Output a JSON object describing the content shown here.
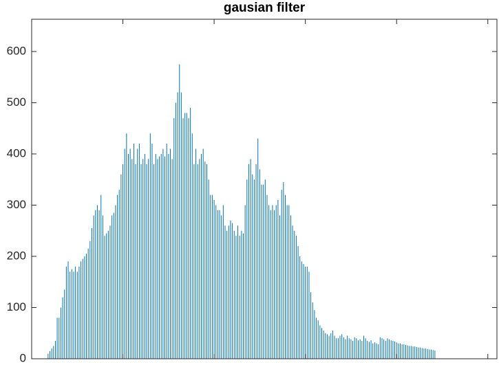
{
  "chart_data": {
    "type": "stem",
    "title": "gausian filter",
    "x": [
      0,
      1,
      2,
      3,
      4,
      5,
      6,
      7,
      8,
      9,
      10,
      11,
      12,
      13,
      14,
      15,
      16,
      17,
      18,
      19,
      20,
      21,
      22,
      23,
      24,
      25,
      26,
      27,
      28,
      29,
      30,
      31,
      32,
      33,
      34,
      35,
      36,
      37,
      38,
      39,
      40,
      41,
      42,
      43,
      44,
      45,
      46,
      47,
      48,
      49,
      50,
      51,
      52,
      53,
      54,
      55,
      56,
      57,
      58,
      59,
      60,
      61,
      62,
      63,
      64,
      65,
      66,
      67,
      68,
      69,
      70,
      71,
      72,
      73,
      74,
      75,
      76,
      77,
      78,
      79,
      80,
      81,
      82,
      83,
      84,
      85,
      86,
      87,
      88,
      89,
      90,
      91,
      92,
      93,
      94,
      95,
      96,
      97,
      98,
      99,
      100,
      101,
      102,
      103,
      104,
      105,
      106,
      107,
      108,
      109,
      110,
      111,
      112,
      113,
      114,
      115,
      116,
      117,
      118,
      119,
      120,
      121,
      122,
      123,
      124,
      125,
      126,
      127,
      128,
      129,
      130,
      131,
      132,
      133,
      134,
      135,
      136,
      137,
      138,
      139,
      140,
      141,
      142,
      143,
      144,
      145,
      146,
      147,
      148,
      149,
      150,
      151,
      152,
      153,
      154,
      155,
      156,
      157,
      158,
      159,
      160,
      161,
      162,
      163,
      164,
      165,
      166,
      167,
      168,
      169,
      170,
      171,
      172,
      173,
      174,
      175,
      176,
      177,
      178,
      179,
      180,
      181,
      182,
      183,
      184,
      185,
      186,
      187,
      188,
      189,
      190,
      191,
      192,
      193,
      194,
      195,
      196,
      197,
      198,
      199,
      200,
      201,
      202,
      203,
      204,
      205,
      206,
      207,
      208,
      209,
      210,
      211,
      212,
      213,
      214,
      215,
      216,
      217,
      218,
      219,
      220,
      221,
      222,
      223,
      224,
      225,
      226,
      227,
      228,
      229,
      230,
      231,
      232,
      233,
      234,
      235,
      236,
      237,
      238,
      239,
      240,
      241,
      242,
      243,
      244,
      245,
      246,
      247,
      248,
      249,
      250,
      251,
      252,
      253,
      254,
      255
    ],
    "values": [
      0,
      0,
      0,
      0,
      0,
      0,
      0,
      0,
      0,
      10,
      15,
      20,
      25,
      35,
      80,
      80,
      100,
      120,
      135,
      180,
      190,
      170,
      175,
      170,
      180,
      170,
      180,
      190,
      195,
      200,
      205,
      215,
      230,
      255,
      280,
      290,
      300,
      290,
      320,
      280,
      240,
      245,
      250,
      260,
      280,
      285,
      300,
      320,
      330,
      360,
      380,
      410,
      440,
      400,
      410,
      390,
      420,
      380,
      410,
      420,
      380,
      390,
      400,
      380,
      390,
      440,
      420,
      380,
      400,
      390,
      395,
      400,
      410,
      395,
      420,
      400,
      410,
      390,
      470,
      500,
      520,
      575,
      520,
      470,
      480,
      480,
      470,
      490,
      440,
      380,
      410,
      380,
      390,
      400,
      410,
      385,
      380,
      350,
      320,
      320,
      310,
      300,
      290,
      290,
      280,
      300,
      260,
      250,
      260,
      270,
      265,
      250,
      240,
      260,
      240,
      250,
      245,
      300,
      350,
      380,
      390,
      360,
      350,
      380,
      430,
      370,
      340,
      340,
      350,
      320,
      300,
      290,
      300,
      290,
      300,
      310,
      280,
      330,
      345,
      320,
      300,
      300,
      280,
      260,
      250,
      240,
      220,
      200,
      190,
      185,
      180,
      180,
      170,
      130,
      110,
      95,
      80,
      75,
      65,
      60,
      55,
      50,
      48,
      45,
      50,
      55,
      45,
      40,
      40,
      45,
      48,
      42,
      38,
      45,
      40,
      38,
      35,
      42,
      40,
      36,
      38,
      35,
      45,
      40,
      35,
      33,
      36,
      30,
      32,
      30,
      28,
      42,
      40,
      38,
      35,
      40,
      38,
      36,
      35,
      34,
      32,
      30,
      30,
      28,
      28,
      27,
      26,
      25,
      25,
      24,
      24,
      23,
      22,
      22,
      21,
      20,
      20,
      19,
      18,
      18,
      17,
      16,
      0,
      0,
      0,
      0,
      0,
      0,
      0,
      0,
      0,
      0,
      0,
      0,
      0,
      0,
      0,
      0,
      0,
      0,
      0,
      0,
      0,
      0,
      0,
      0,
      0,
      0,
      0,
      0,
      0,
      0,
      0,
      0,
      0,
      0
    ],
    "color": "#0072bd",
    "xlim": [
      0,
      255
    ],
    "xticks": [
      0,
      50,
      100,
      150,
      200,
      250
    ],
    "ylim": [
      0,
      663
    ],
    "yticks": [
      0,
      100,
      200,
      300,
      400,
      500,
      600
    ]
  }
}
